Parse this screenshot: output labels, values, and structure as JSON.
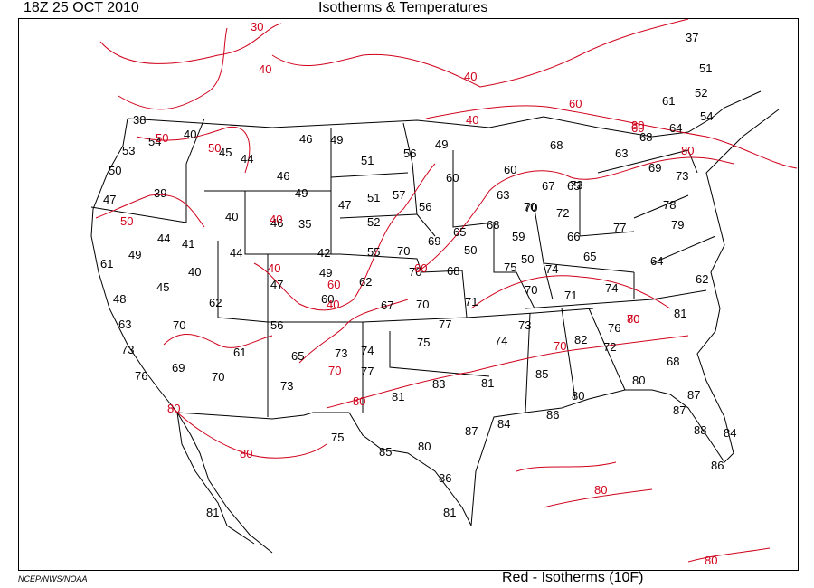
{
  "header": {
    "valid_time": "18Z  25 OCT 2010",
    "title": "Isotherms & Temperatures"
  },
  "footer": {
    "credit": "NCEP/NWS/NOAA",
    "legend": "Red - Isotherms (10F)"
  },
  "colors": {
    "isotherm": "#d0021b",
    "boundary": "#000000",
    "background": "#ffffff"
  },
  "temperatures": [
    "37",
    "51",
    "52",
    "54",
    "61",
    "64",
    "68",
    "68",
    "63",
    "69",
    "60",
    "73",
    "70",
    "50",
    "49",
    "56",
    "46",
    "49",
    "51",
    "50",
    "40",
    "45",
    "44",
    "54",
    "53",
    "50",
    "47",
    "39",
    "46",
    "49",
    "47",
    "51",
    "57",
    "60",
    "63",
    "68",
    "56",
    "40",
    "44",
    "41",
    "40",
    "46",
    "35",
    "42",
    "52",
    "55",
    "70",
    "69",
    "65",
    "59",
    "70",
    "67",
    "65",
    "66",
    "72",
    "73",
    "77",
    "78",
    "79",
    "61",
    "49",
    "44",
    "47",
    "49",
    "62",
    "70",
    "68",
    "75",
    "74",
    "64",
    "62",
    "48",
    "45",
    "62",
    "60",
    "67",
    "70",
    "71",
    "70",
    "71",
    "74",
    "65",
    "81",
    "63",
    "70",
    "56",
    "61",
    "65",
    "73",
    "74",
    "75",
    "77",
    "73",
    "74",
    "82",
    "76",
    "72",
    "73",
    "76",
    "69",
    "70",
    "73",
    "77",
    "81",
    "83",
    "81",
    "85",
    "84",
    "80",
    "68",
    "87",
    "87",
    "88",
    "84",
    "86",
    "86",
    "75",
    "85",
    "80",
    "87",
    "86",
    "81",
    "81",
    "80",
    "38"
  ],
  "isotherm_labels": [
    "30",
    "30",
    "30",
    "40",
    "50",
    "50",
    "40",
    "40",
    "60",
    "60",
    "40",
    "50",
    "40",
    "40",
    "60",
    "70",
    "70",
    "80",
    "80",
    "80",
    "70",
    "80",
    "80",
    "80",
    "60",
    "80",
    "80"
  ]
}
